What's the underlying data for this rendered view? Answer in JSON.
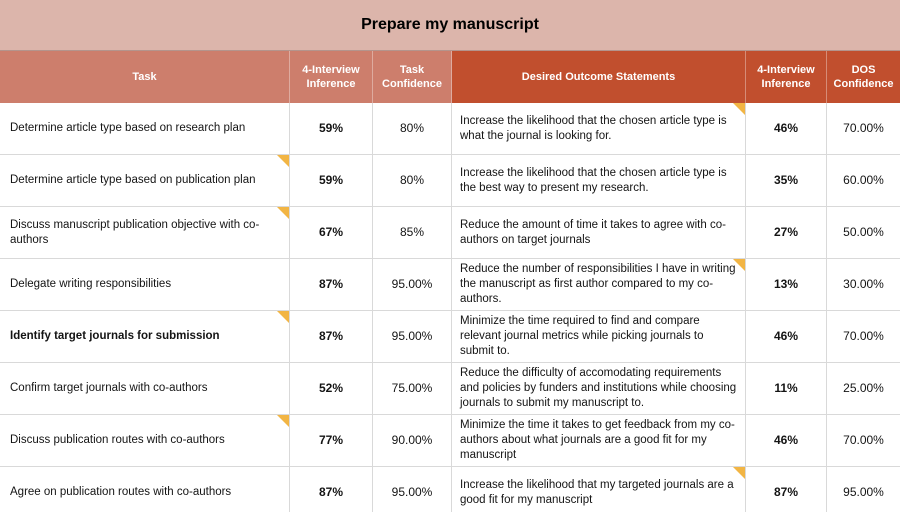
{
  "title": "Prepare my manuscript",
  "colors": {
    "title_bg": "#dcb5ab",
    "header_light_bg": "#cd7e6c",
    "header_dark_bg": "#c14f2e",
    "note": "#f2b544",
    "grid": "#d9d9d9",
    "text": "#141414",
    "header_text": "#ffffff"
  },
  "header": [
    {
      "label": "Task"
    },
    {
      "label": "4-Interview Inference"
    },
    {
      "label": "Task Confidence"
    },
    {
      "label": "Desired Outcome Statements"
    },
    {
      "label": "4-Interview Inference"
    },
    {
      "label": "DOS Confidence"
    }
  ],
  "rows": [
    {
      "task": "Determine article type based on research plan",
      "task_bold": false,
      "task_note": false,
      "task_inference": "59%",
      "task_confidence": "80%",
      "dos": "Increase the likelihood that the chosen article type is what the journal is looking for.",
      "dos_note": true,
      "dos_inference": "46%",
      "dos_confidence": "70.00%"
    },
    {
      "task": "Determine article type based on publication plan",
      "task_bold": false,
      "task_note": true,
      "task_inference": "59%",
      "task_confidence": "80%",
      "dos": "Increase the likelihood that the chosen article type is the best way to present my research.",
      "dos_note": false,
      "dos_inference": "35%",
      "dos_confidence": "60.00%"
    },
    {
      "task": "Discuss manuscript publication objective with co-authors",
      "task_bold": false,
      "task_note": true,
      "task_inference": "67%",
      "task_confidence": "85%",
      "dos": "Reduce the amount of time it takes to agree with co-authors on target journals",
      "dos_note": false,
      "dos_inference": "27%",
      "dos_confidence": "50.00%"
    },
    {
      "task": "Delegate writing responsibilities",
      "task_bold": false,
      "task_note": false,
      "task_inference": "87%",
      "task_confidence": "95.00%",
      "dos": "Reduce the number of responsibilities I have in writing the manuscript as first author compared to my co-authors.",
      "dos_note": true,
      "dos_inference": "13%",
      "dos_confidence": "30.00%"
    },
    {
      "task": "Identify target journals for submission",
      "task_bold": true,
      "task_note": true,
      "task_inference": "87%",
      "task_confidence": "95.00%",
      "dos": "Minimize the time required to find and compare relevant journal metrics while picking journals to submit to.",
      "dos_note": false,
      "dos_inference": "46%",
      "dos_confidence": "70.00%"
    },
    {
      "task": "Confirm target journals with co-authors",
      "task_bold": false,
      "task_note": false,
      "task_inference": "52%",
      "task_confidence": "75.00%",
      "dos": "Reduce the difficulty of accomodating requirements and policies by funders and institutions while choosing journals to submit my manuscript to.",
      "dos_note": false,
      "dos_inference": "11%",
      "dos_confidence": "25.00%"
    },
    {
      "task": "Discuss publication routes with co-authors",
      "task_bold": false,
      "task_note": true,
      "task_inference": "77%",
      "task_confidence": "90.00%",
      "dos": "Minimize the time it takes to get feedback from my co-authors about what journals are a good fit for my manuscript",
      "dos_note": false,
      "dos_inference": "46%",
      "dos_confidence": "70.00%"
    },
    {
      "task": "Agree on publication routes with co-authors",
      "task_bold": false,
      "task_note": false,
      "task_inference": "87%",
      "task_confidence": "95.00%",
      "dos": "Increase the likelihood that my targeted journals are a good fit for my manuscript",
      "dos_note": true,
      "dos_inference": "87%",
      "dos_confidence": "95.00%"
    }
  ]
}
